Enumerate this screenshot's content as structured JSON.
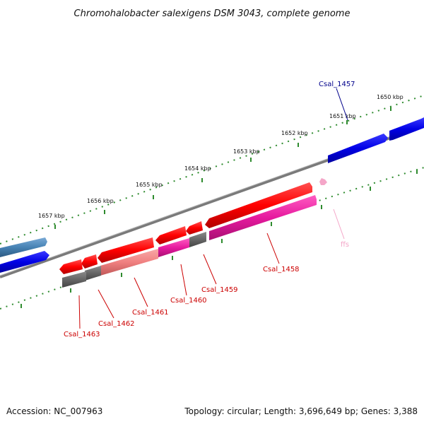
{
  "title": "Chromohalobacter salexigens DSM 3043, complete genome",
  "footer": {
    "accession": "Accession: NC_007963",
    "summary": "Topology: circular; Length: 3,696,649 bp; Genes: 3,388"
  },
  "ticks": [
    "1650 kbp",
    "1651 kbp",
    "1652 kbp",
    "1653 kbp",
    "1654 kbp",
    "1655 kbp",
    "1656 kbp",
    "1657 kbp"
  ],
  "genes": [
    {
      "name": "Csal_1457",
      "color": "#00008B"
    },
    {
      "name": "Csal_1458",
      "color": "#CC0000"
    },
    {
      "name": "Csal_1459",
      "color": "#CC0000"
    },
    {
      "name": "Csal_1460",
      "color": "#CC0000"
    },
    {
      "name": "Csal_1461",
      "color": "#CC0000"
    },
    {
      "name": "Csal_1462",
      "color": "#CC0000"
    },
    {
      "name": "Csal_1463",
      "color": "#CC0000"
    },
    {
      "name": "ffs",
      "color": "#F4A6C8"
    }
  ],
  "colors": {
    "forward_cds": "#0000EE",
    "forward_alt": "#4682B4",
    "reverse_cds": "#FF0000",
    "reverse_light": "#F08080",
    "magenta": "#E6199E",
    "gray_feature": "#666666",
    "backbone": "#808080",
    "tick_dots": "#2E8B2E"
  }
}
